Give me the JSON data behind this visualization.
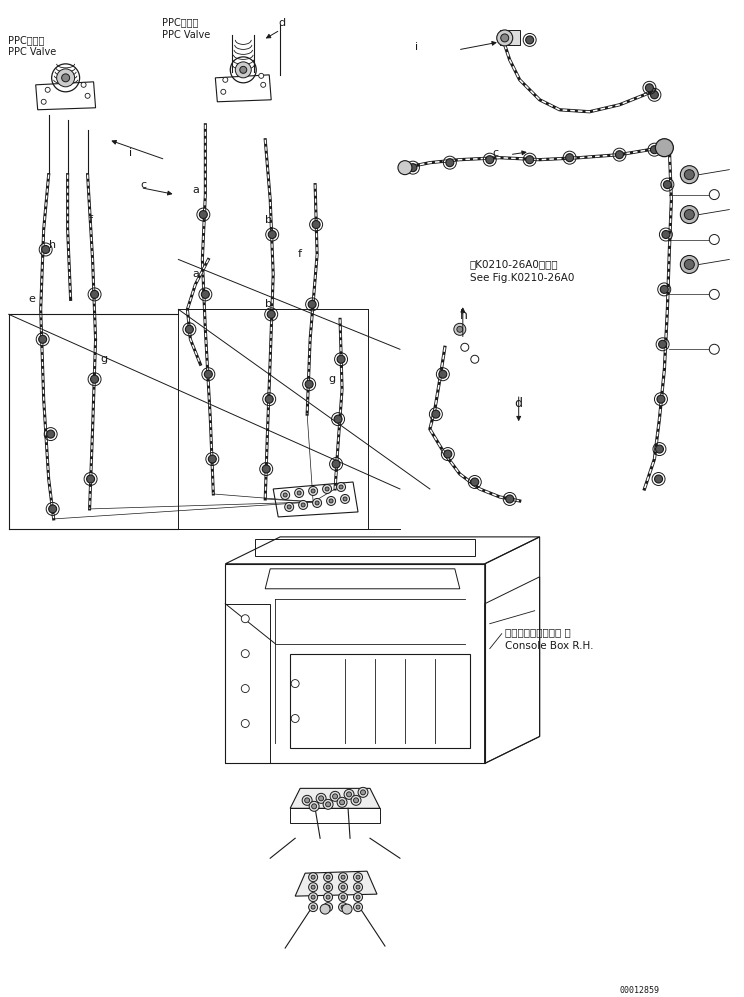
{
  "bg_color": "#ffffff",
  "line_color": "#1a1a1a",
  "fig_width": 7.44,
  "fig_height": 9.97,
  "dpi": 100,
  "part_number": "00012859",
  "labels": {
    "ppc_valve_left_jp": "PPCバルブ",
    "ppc_valve_left_en": "PPC Valve",
    "ppc_valve_center_jp": "PPCバルブ",
    "ppc_valve_center_en": "PPC Valve",
    "see_fig_jp": "第K0210-26A0図参照",
    "see_fig_en": "See Fig.K0210-26A0",
    "console_box_jp": "コンソールボックス 右",
    "console_box_en": "Console Box R.H.",
    "a": "a",
    "b": "b",
    "c": "c",
    "d": "d",
    "e": "e",
    "f": "f",
    "g": "g",
    "h": "h",
    "i": "i"
  },
  "font_size": 7.5
}
